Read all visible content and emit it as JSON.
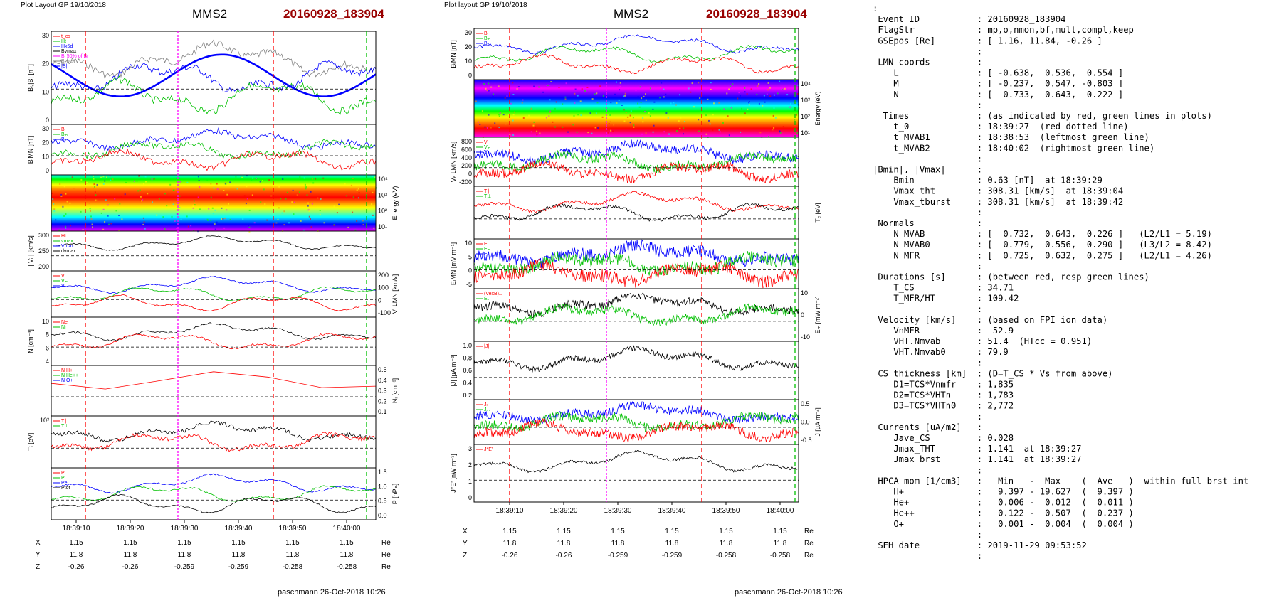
{
  "left": {
    "layout_label": "Plot Layout GP 19/10/2018",
    "spacecraft": "MMS2",
    "event": "20160928_183904",
    "footer": "paschmann 26-Oct-2018 10:26",
    "time_ticks": [
      "18:39:10",
      "18:39:20",
      "18:39:30",
      "18:39:40",
      "18:39:50",
      "18:40:00"
    ],
    "pos_rows": [
      {
        "label": "X",
        "values": [
          "1.15",
          "1.15",
          "1.15",
          "1.15",
          "1.15",
          "1.15"
        ],
        "unit": "Re"
      },
      {
        "label": "Y",
        "values": [
          "11.8",
          "11.8",
          "11.8",
          "11.8",
          "11.8",
          "11.8"
        ],
        "unit": "Re"
      },
      {
        "label": "Z",
        "values": [
          "-0.26",
          "-0.26",
          "-0.259",
          "-0.259",
          "-0.258",
          "-0.258"
        ],
        "unit": "Re"
      }
    ],
    "panels": [
      {
        "ylabel": "Bₗ,|B| [nT]",
        "ticks": [
          "30",
          "20",
          "10",
          "0"
        ],
        "legend": [
          "t_cs",
          "Ht",
          "Hx5d",
          "Bvmax",
          "Bₗ 50% of Bₗ",
          "Bₗ brst",
          "|B|"
        ]
      },
      {
        "ylabel": "BₗMN [nT]",
        "ticks": [
          "30",
          "20",
          "10",
          "0"
        ],
        "legend": [
          "Bₗ",
          "Bₘ",
          "Bₙ"
        ]
      },
      {
        "ylabel": "Energy (eV)",
        "ticks": [
          "10⁴",
          "10³",
          "10²",
          "10¹"
        ],
        "legend": []
      },
      {
        "ylabel": "| Vᵢ | [km/s]",
        "ticks": [
          "300",
          "250",
          "200"
        ],
        "legend": [
          "Ht",
          "vmax",
          "Vmax",
          "dvmax"
        ]
      },
      {
        "ylabel": "Vᵢ LMN [km/s]",
        "ticks": [
          "200",
          "100",
          "0",
          "-100"
        ],
        "legend": [
          "Vₗ",
          "Vₘ",
          "Vₙ"
        ]
      },
      {
        "ylabel": "N [cm⁻³]",
        "ticks": [
          "10",
          "8",
          "6",
          "4"
        ],
        "legend": [
          "Ne",
          "Ni"
        ]
      },
      {
        "ylabel": "Nᵢ [cm⁻³]",
        "ticks": [
          "0.5",
          "0.4",
          "0.3",
          "0.2",
          "0.1"
        ],
        "legend": [
          "N H+",
          "N He++",
          "N O+"
        ]
      },
      {
        "ylabel": "Tᵢ [eV]",
        "ticks": [
          "10³"
        ],
        "legend": [
          "T∥",
          "T⊥"
        ]
      },
      {
        "ylabel": "P [nPa]",
        "ticks": [
          "1.5",
          "1.0",
          "0.5",
          "0.0"
        ],
        "legend": [
          "P",
          "Pi",
          "Pe",
          "Ptot"
        ]
      }
    ]
  },
  "middle": {
    "layout_label": "Plot layout GP 19/10/2018",
    "spacecraft": "MMS2",
    "event": "20160928_183904",
    "footer": "paschmann 26-Oct-2018 10:26",
    "time_ticks": [
      "18:39:10",
      "18:39:20",
      "18:39:30",
      "18:39:40",
      "18:39:50",
      "18:40:00"
    ],
    "pos_rows": [
      {
        "label": "X",
        "values": [
          "1.15",
          "1.15",
          "1.15",
          "1.15",
          "1.15",
          "1.15"
        ],
        "unit": "Re"
      },
      {
        "label": "Y",
        "values": [
          "11.8",
          "11.8",
          "11.8",
          "11.8",
          "11.8",
          "11.8"
        ],
        "unit": "Re"
      },
      {
        "label": "Z",
        "values": [
          "-0.26",
          "-0.26",
          "-0.259",
          "-0.259",
          "-0.258",
          "-0.258"
        ],
        "unit": "Re"
      }
    ],
    "panels": [
      {
        "ylabel": "BₗMN [nT]",
        "ticks": [
          "30",
          "20",
          "10",
          "0"
        ],
        "legend": [
          "Bₗ",
          "Bₘ",
          "Bₙ"
        ]
      },
      {
        "ylabel": "Energy (eV)",
        "ticks": [
          "10⁴",
          "10³",
          "10²",
          "10¹"
        ],
        "legend": []
      },
      {
        "ylabel": "Vₑ LMN [km/s]",
        "ticks": [
          "800",
          "600",
          "400",
          "200",
          "0",
          "-200"
        ],
        "legend": [
          "Vₗ",
          "Vₘ",
          "Vₙ"
        ]
      },
      {
        "ylabel": "Tₑ [eV]",
        "ticks": [],
        "legend": [
          "T∥",
          "T⊥"
        ]
      },
      {
        "ylabel": "EₗMN [mV m⁻¹]",
        "ticks": [
          "10",
          "5",
          "0",
          "-5"
        ],
        "legend": [
          "Eₗ",
          "Eₘ",
          "Eₙ"
        ]
      },
      {
        "ylabel": "Eₘ [mW m⁻²]",
        "ticks": [
          "10",
          "0",
          "-10"
        ],
        "legend": [
          "(VexB)ₘ",
          "Eₘ"
        ]
      },
      {
        "ylabel": "|J| [μA m⁻²]",
        "ticks": [
          "1.0",
          "0.8",
          "0.6",
          "0.4",
          "0.2"
        ],
        "legend": [
          "|J|"
        ]
      },
      {
        "ylabel": "J [μA m⁻²]",
        "ticks": [
          "0.5",
          "0.0",
          "-0.5"
        ],
        "legend": [
          "Jₗ",
          "Jₘ",
          "Jₙ"
        ]
      },
      {
        "ylabel": "J*E' [nW m⁻³]",
        "ticks": [
          "3",
          "2",
          "1",
          "0"
        ],
        "legend": [
          "J*E'"
        ]
      }
    ]
  },
  "info": {
    "lines": [
      ":",
      " Event ID           : 20160928_183904",
      " FlagStr            : mp,o,nmon,bf,mult,compl,keep",
      " GSEpos [Re]        : [ 1.16, 11.84, -0.26 ]",
      "                    :",
      " LMN coords         :",
      "    L               : [ -0.638,  0.536,  0.554 ]",
      "    M               : [ -0.237,  0.547, -0.803 ]",
      "    N               : [  0.733,  0.643,  0.222 ]",
      "                    :",
      "  Times             : (as indicated by red, green lines in plots)",
      "    t_0             : 18:39:27  (red dotted line)",
      "    t_MVAB1         : 18:38:53  (leftmost green line)",
      "    t_MVAB2         : 18:40:02  (rightmost green line)",
      "                    :",
      "|Bmin|, |Vmax|      :",
      "    Bmin            : 0.63 [nT]  at 18:39:29",
      "    Vmax_tht        : 308.31 [km/s]  at 18:39:04",
      "    Vmax_tburst     : 308.31 [km/s]  at 18:39:42",
      "                    :",
      " Normals            :",
      "    N MVAB          : [  0.732,  0.643,  0.226 ]   (L2/L1 = 5.19)",
      "    N MVAB0         : [  0.779,  0.556,  0.290 ]   (L3/L2 = 8.42)",
      "    N MFR           : [  0.725,  0.632,  0.275 ]   (L2/L1 = 4.26)",
      "                    :",
      " Durations [s]      : (between red, resp green lines)",
      "    T_CS            : 34.71",
      "    T_MFR/HT        : 109.42",
      "                    :",
      " Velocity [km/s]    : (based on FPI ion data)",
      "    VnMFR           : -52.9",
      "    VHT.Nmvab       : 51.4  (HTcc = 0.951)",
      "    VHT.Nmvab0      : 79.9",
      "                    :",
      " CS thickness [km]  : (D=T_CS * Vs from above)",
      "    D1=TCS*Vnmfr    : 1,835",
      "    D2=TCS*VHTn     : 1,783",
      "    D3=TCS*VHTn0    : 2,772",
      "                    :",
      " Currents [uA/m2]   :",
      "    Jave_CS         : 0.028",
      "    Jmax_THT        : 1.141  at 18:39:27",
      "    Jmax_brst       : 1.141  at 18:39:27",
      "                    :",
      " HPCA mom [1/cm3]   :   Min   -  Max    (  Ave   )  within full brst int",
      "    H+              :   9.397 - 19.627  (  9.397 )",
      "    He+             :   0.006 -  0.012  (  0.011 )",
      "    He++            :   0.122 -  0.507  (  0.237 )",
      "    O+              :   0.001 -  0.004  (  0.004 )",
      "                    :",
      " SEH date           : 2019-11-29 09:53:52",
      "                    :"
    ]
  },
  "colors": {
    "title_red": "#990000",
    "blue": "#0000ff",
    "green": "#00c000",
    "red": "#ff0000",
    "black": "#000000",
    "magenta": "#ff00ff"
  }
}
